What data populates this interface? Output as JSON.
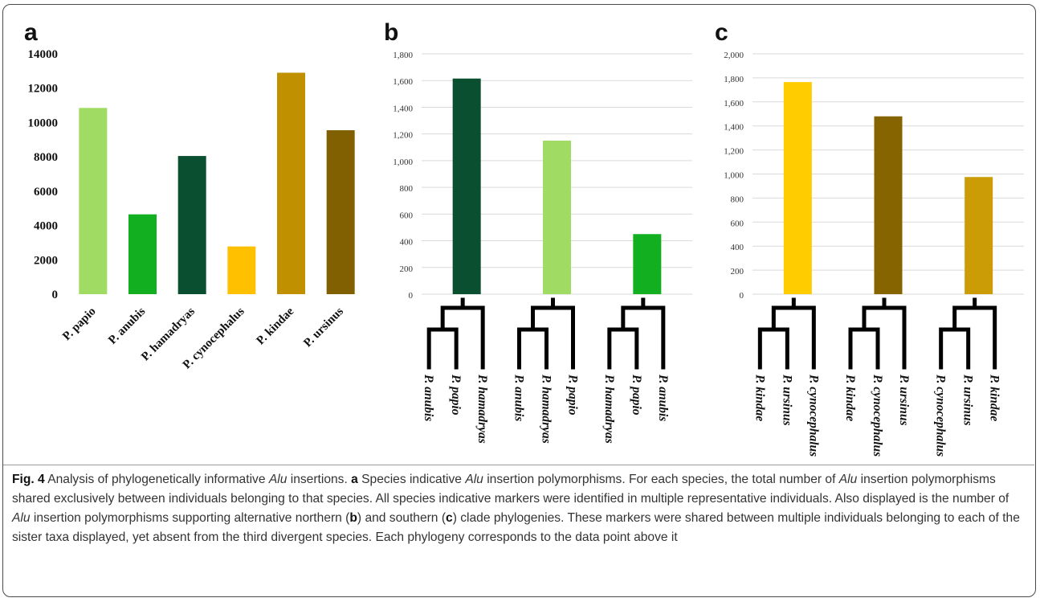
{
  "panels": {
    "a": "a",
    "b": "b",
    "c": "c"
  },
  "colors": {
    "light_green": "#a0dc64",
    "green": "#12b020",
    "dark_green": "#0a5030",
    "yellow": "#ffc000",
    "dark_gold": "#c09000",
    "brown": "#806000",
    "gold": "#ffcc00",
    "olive_brown": "#866400",
    "mustard": "#cc9c06"
  },
  "chart_data": [
    {
      "id": "a",
      "type": "bar",
      "categories": [
        "P. papio",
        "P. anubis",
        "P. hamadryas",
        "P. cynocephalus",
        "P. kindae",
        "P. ursinus"
      ],
      "values": [
        10850,
        4650,
        8050,
        2780,
        12900,
        9550
      ],
      "colors": [
        "#a0dc64",
        "#12b020",
        "#0a5030",
        "#ffc000",
        "#c09000",
        "#806000"
      ],
      "ylim": [
        0,
        14000
      ],
      "ticks": [
        "0",
        "2000",
        "4000",
        "6000",
        "8000",
        "10000",
        "12000",
        "14000"
      ],
      "grid": false
    },
    {
      "id": "b",
      "type": "bar",
      "values": [
        1615,
        1150,
        450
      ],
      "colors": [
        "#0a5030",
        "#a0dc64",
        "#12b020"
      ],
      "ylim": [
        0,
        1800
      ],
      "ticks": [
        "0",
        "200",
        "400",
        "600",
        "800",
        "1,000",
        "1,200",
        "1,400",
        "1,600",
        "1,800"
      ],
      "grid": true,
      "trees": [
        [
          "P. anubis",
          "P. papio",
          "P. hamadryas"
        ],
        [
          "P. anubis",
          "P. hamadryas",
          "P. papio"
        ],
        [
          "P. hamadryas",
          "P. papio",
          "P. anubis"
        ]
      ]
    },
    {
      "id": "c",
      "type": "bar",
      "values": [
        1765,
        1480,
        975
      ],
      "colors": [
        "#ffcc00",
        "#866400",
        "#cc9c06"
      ],
      "ylim": [
        0,
        2000
      ],
      "ticks": [
        "0",
        "200",
        "400",
        "600",
        "800",
        "1,000",
        "1,200",
        "1,400",
        "1,600",
        "1,800",
        "2,000"
      ],
      "grid": true,
      "trees": [
        [
          "P. kindae",
          "P. ursinus",
          "P. cynocephalus"
        ],
        [
          "P. kindae",
          "P. cynocephalus",
          "P. ursinus"
        ],
        [
          "P. cynocephalus",
          "P. ursinus",
          "P. kindae"
        ]
      ]
    }
  ],
  "caption": {
    "fig_label": "Fig. 4",
    "t1": " Analysis of phylogenetically informative ",
    "alu": "Alu",
    "t2": " insertions. ",
    "a": "a",
    "t3": " Species indicative ",
    "t4": " insertion polymorphisms. For each species, the total number of ",
    "t5": " insertion polymorphisms shared exclusively between individuals belonging to that species. All species indicative markers were identified in multiple representative individuals. Also displayed is the number of ",
    "t6": " insertion polymorphisms supporting alternative northern (",
    "b": "b",
    "t7": ") and southern (",
    "c": "c",
    "t8": ") clade phylogenies. These markers were shared between multiple individuals belonging to each of the sister taxa displayed, yet absent from the third divergent species. Each phylogeny corresponds to the data point above it"
  }
}
